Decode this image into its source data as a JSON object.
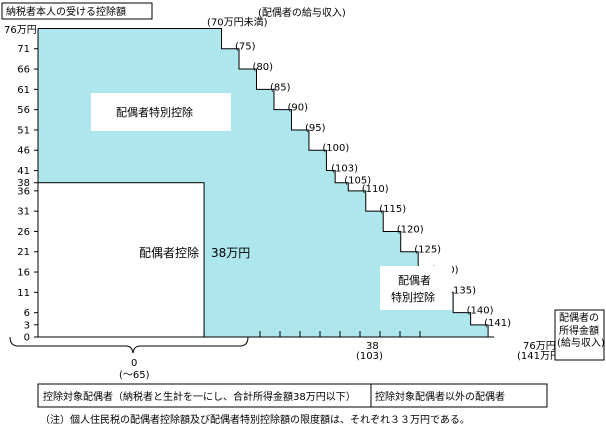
{
  "colors": {
    "fill": "#aee6ee",
    "line": "#000000",
    "background": "#ffffff",
    "box": "#ffffff"
  },
  "chart_data": {
    "type": "area",
    "title": "納税者本人の受ける控除額",
    "top_caption": "(配偶者の給与収入)",
    "y_top_label": "76万円",
    "y_ticks": [
      0,
      3,
      6,
      11,
      16,
      21,
      26,
      31,
      36,
      38,
      41,
      46,
      51,
      56,
      61,
      66,
      71
    ],
    "y_tick_labels": [
      "0",
      "3",
      "6",
      "11",
      "16",
      "21",
      "26",
      "31",
      "36",
      "38",
      "41",
      "46",
      "51",
      "56",
      "61",
      "66",
      "71"
    ],
    "xlim": [
      0,
      76
    ],
    "ylim": [
      0,
      76
    ],
    "x_tick_marks": [
      38,
      42,
      46,
      50,
      54,
      58,
      62,
      66,
      70,
      74
    ],
    "special_deduction_steps": [
      {
        "x": 38,
        "y": 76,
        "label": "(70万円未満)"
      },
      {
        "x": 42,
        "y": 71,
        "label": "(75)"
      },
      {
        "x": 46,
        "y": 66,
        "label": "(80)"
      },
      {
        "x": 50,
        "y": 61,
        "label": "(85)"
      },
      {
        "x": 54,
        "y": 56,
        "label": "(90)"
      },
      {
        "x": 58,
        "y": 51,
        "label": "(95)"
      },
      {
        "x": 62,
        "y": 46,
        "label": "(100)"
      },
      {
        "x": 66,
        "y": 41,
        "label": "(103)"
      },
      {
        "x": 68,
        "y": 38,
        "label": "(105)"
      },
      {
        "x": 71,
        "y": 36,
        "label": "(110)"
      },
      {
        "x": 75,
        "y": 31,
        "label": "(115)"
      },
      {
        "x": 79,
        "y": 26,
        "label": "(120)"
      },
      {
        "x": 83,
        "y": 21,
        "label": "(125)"
      },
      {
        "x": 87,
        "y": 16,
        "label": "(130)"
      },
      {
        "x": 91,
        "y": 11,
        "label": "(135)"
      },
      {
        "x": 95,
        "y": 6,
        "label": "(140)"
      },
      {
        "x": 99,
        "y": 3,
        "label": "(141)"
      }
    ],
    "spouse_deduction": {
      "x_end": 38,
      "y": 38
    },
    "area_labels": {
      "special_upper": "配偶者特別控除",
      "spouse_deduction": "配偶者控除　38万円",
      "special_lower_line1": "配偶者",
      "special_lower_line2": "特別控除"
    },
    "x_labels": {
      "mid_value": "38",
      "mid_sub": "(103)",
      "end_value": "76万円",
      "end_sub": "(141万円)",
      "brace_value": "0",
      "brace_sub": "(～65)"
    },
    "x_axis_title": [
      "配偶者の",
      "所得金額",
      "(給与収入)"
    ]
  },
  "bottom_table": {
    "left": "控除対象配偶者（納税者と生計を一にし、合計所得金額38万円以下）",
    "right": "控除対象配偶者以外の配偶者"
  },
  "note": "（注）個人住民税の配偶者控除額及び配偶者特別控除額の限度額は、それぞれ３３万円である。"
}
